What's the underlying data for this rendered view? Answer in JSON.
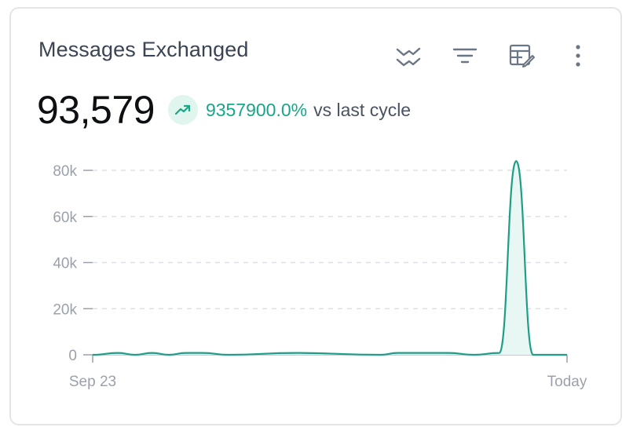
{
  "card": {
    "title": "Messages Exchanged",
    "toolbar": [
      {
        "name": "compare-icon"
      },
      {
        "name": "filter-icon"
      },
      {
        "name": "edit-table-icon"
      },
      {
        "name": "more-vertical-icon"
      }
    ]
  },
  "metric": {
    "value": "93,579",
    "trend_icon": "trending-up-icon",
    "change": "9357900.0%",
    "change_suffix": "vs last cycle"
  },
  "colors": {
    "accent": "#18a687",
    "line": "#1f9e86",
    "area": "#e9f7f4"
  },
  "chart_data": {
    "type": "area",
    "x_labels": [
      "Sep 23",
      "Today"
    ],
    "y_ticks": [
      "0",
      "20k",
      "40k",
      "60k",
      "80k"
    ],
    "ylim": [
      0,
      80000
    ],
    "grid": true,
    "x": [
      0,
      1.5,
      2.5,
      3.5,
      4.5,
      5.5,
      6.5,
      8,
      12,
      17,
      18,
      19,
      20,
      21,
      22.5,
      24,
      25,
      26,
      27,
      28
    ],
    "values": [
      0,
      800,
      0,
      800,
      0,
      800,
      800,
      0,
      800,
      0,
      800,
      800,
      800,
      800,
      0,
      800,
      84000,
      0,
      0,
      0
    ],
    "x_max": 28
  }
}
